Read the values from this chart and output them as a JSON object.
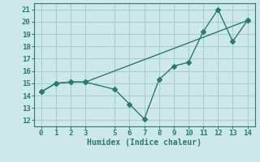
{
  "line1_x": [
    0,
    1,
    2,
    3,
    14
  ],
  "line1_y": [
    14.3,
    15.0,
    15.1,
    15.1,
    20.1
  ],
  "line2_x": [
    0,
    1,
    2,
    3,
    5,
    6,
    7,
    8,
    9,
    10,
    11,
    12,
    13,
    14
  ],
  "line2_y": [
    14.3,
    15.0,
    15.1,
    15.1,
    14.5,
    13.3,
    12.1,
    15.3,
    16.4,
    16.7,
    19.2,
    21.0,
    18.4,
    20.1
  ],
  "line_color": "#2a7a72",
  "bg_color": "#cce8e8",
  "grid_color": "#aacfcf",
  "xlabel": "Humidex (Indice chaleur)",
  "ylim": [
    11.5,
    21.5
  ],
  "xlim": [
    -0.5,
    14.5
  ],
  "yticks": [
    12,
    13,
    14,
    15,
    16,
    17,
    18,
    19,
    20,
    21
  ],
  "xticks": [
    0,
    1,
    2,
    3,
    5,
    6,
    7,
    8,
    9,
    10,
    11,
    12,
    13,
    14
  ],
  "markersize": 3,
  "linewidth": 1.0,
  "xlabel_fontsize": 7,
  "tick_fontsize": 6.5
}
